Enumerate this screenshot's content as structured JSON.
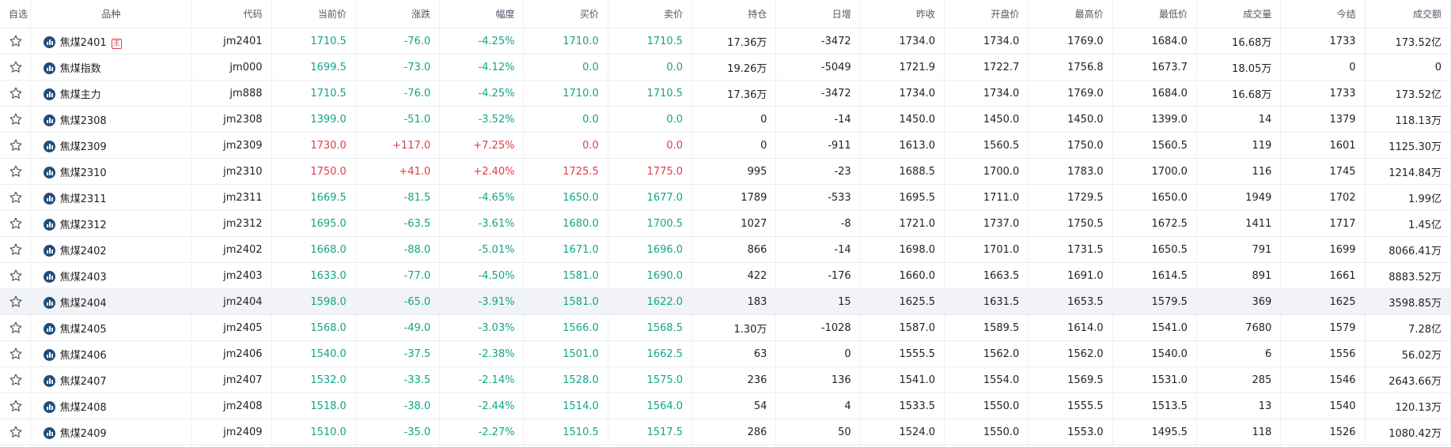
{
  "columns": [
    "自选",
    "品种",
    "代码",
    "当前价",
    "涨跌",
    "幅度",
    "买价",
    "卖价",
    "持仓",
    "日增",
    "昨收",
    "开盘价",
    "最高价",
    "最低价",
    "成交量",
    "今结",
    "成交额"
  ],
  "colors": {
    "up": "#e13b48",
    "down": "#12a587",
    "icon": "#1f4e7c"
  },
  "rows": [
    {
      "dir": "down",
      "name": "焦煤2401",
      "badge": "主",
      "code": "jm2401",
      "price": "1710.5",
      "chg": "-76.0",
      "pct": "-4.25%",
      "bid": "1710.0",
      "ask": "1710.5",
      "oi": "17.36万",
      "daily": "-3472",
      "prev": "1734.0",
      "open": "1734.0",
      "high": "1769.0",
      "low": "1684.0",
      "vol": "16.68万",
      "settle": "1733",
      "amount": "173.52亿"
    },
    {
      "dir": "down",
      "name": "焦煤指数",
      "badge": "",
      "code": "jm000",
      "price": "1699.5",
      "chg": "-73.0",
      "pct": "-4.12%",
      "bid": "0.0",
      "ask": "0.0",
      "oi": "19.26万",
      "daily": "-5049",
      "prev": "1721.9",
      "open": "1722.7",
      "high": "1756.8",
      "low": "1673.7",
      "vol": "18.05万",
      "settle": "0",
      "amount": "0"
    },
    {
      "dir": "down",
      "name": "焦煤主力",
      "badge": "",
      "code": "jm888",
      "price": "1710.5",
      "chg": "-76.0",
      "pct": "-4.25%",
      "bid": "1710.0",
      "ask": "1710.5",
      "oi": "17.36万",
      "daily": "-3472",
      "prev": "1734.0",
      "open": "1734.0",
      "high": "1769.0",
      "low": "1684.0",
      "vol": "16.68万",
      "settle": "1733",
      "amount": "173.52亿"
    },
    {
      "dir": "down",
      "name": "焦煤2308",
      "badge": "",
      "code": "jm2308",
      "price": "1399.0",
      "chg": "-51.0",
      "pct": "-3.52%",
      "bid": "0.0",
      "ask": "0.0",
      "oi": "0",
      "daily": "-14",
      "prev": "1450.0",
      "open": "1450.0",
      "high": "1450.0",
      "low": "1399.0",
      "vol": "14",
      "settle": "1379",
      "amount": "118.13万"
    },
    {
      "dir": "up",
      "name": "焦煤2309",
      "badge": "",
      "code": "jm2309",
      "price": "1730.0",
      "chg": "+117.0",
      "pct": "+7.25%",
      "bid": "0.0",
      "ask": "0.0",
      "oi": "0",
      "daily": "-911",
      "prev": "1613.0",
      "open": "1560.5",
      "high": "1750.0",
      "low": "1560.5",
      "vol": "119",
      "settle": "1601",
      "amount": "1125.30万"
    },
    {
      "dir": "up",
      "name": "焦煤2310",
      "badge": "",
      "code": "jm2310",
      "price": "1750.0",
      "chg": "+41.0",
      "pct": "+2.40%",
      "bid": "1725.5",
      "ask": "1775.0",
      "oi": "995",
      "daily": "-23",
      "prev": "1688.5",
      "open": "1700.0",
      "high": "1783.0",
      "low": "1700.0",
      "vol": "116",
      "settle": "1745",
      "amount": "1214.84万"
    },
    {
      "dir": "down",
      "name": "焦煤2311",
      "badge": "",
      "code": "jm2311",
      "price": "1669.5",
      "chg": "-81.5",
      "pct": "-4.65%",
      "bid": "1650.0",
      "ask": "1677.0",
      "oi": "1789",
      "daily": "-533",
      "prev": "1695.5",
      "open": "1711.0",
      "high": "1729.5",
      "low": "1650.0",
      "vol": "1949",
      "settle": "1702",
      "amount": "1.99亿"
    },
    {
      "dir": "down",
      "name": "焦煤2312",
      "badge": "",
      "code": "jm2312",
      "price": "1695.0",
      "chg": "-63.5",
      "pct": "-3.61%",
      "bid": "1680.0",
      "ask": "1700.5",
      "oi": "1027",
      "daily": "-8",
      "prev": "1721.0",
      "open": "1737.0",
      "high": "1750.5",
      "low": "1672.5",
      "vol": "1411",
      "settle": "1717",
      "amount": "1.45亿"
    },
    {
      "dir": "down",
      "name": "焦煤2402",
      "badge": "",
      "code": "jm2402",
      "price": "1668.0",
      "chg": "-88.0",
      "pct": "-5.01%",
      "bid": "1671.0",
      "ask": "1696.0",
      "oi": "866",
      "daily": "-14",
      "prev": "1698.0",
      "open": "1701.0",
      "high": "1731.5",
      "low": "1650.5",
      "vol": "791",
      "settle": "1699",
      "amount": "8066.41万"
    },
    {
      "dir": "down",
      "name": "焦煤2403",
      "badge": "",
      "code": "jm2403",
      "price": "1633.0",
      "chg": "-77.0",
      "pct": "-4.50%",
      "bid": "1581.0",
      "ask": "1690.0",
      "oi": "422",
      "daily": "-176",
      "prev": "1660.0",
      "open": "1663.5",
      "high": "1691.0",
      "low": "1614.5",
      "vol": "891",
      "settle": "1661",
      "amount": "8883.52万"
    },
    {
      "dir": "down",
      "name": "焦煤2404",
      "badge": "",
      "code": "jm2404",
      "price": "1598.0",
      "chg": "-65.0",
      "pct": "-3.91%",
      "bid": "1581.0",
      "ask": "1622.0",
      "oi": "183",
      "daily": "15",
      "prev": "1625.5",
      "open": "1631.5",
      "high": "1653.5",
      "low": "1579.5",
      "vol": "369",
      "settle": "1625",
      "amount": "3598.85万"
    },
    {
      "dir": "down",
      "name": "焦煤2405",
      "badge": "",
      "code": "jm2405",
      "price": "1568.0",
      "chg": "-49.0",
      "pct": "-3.03%",
      "bid": "1566.0",
      "ask": "1568.5",
      "oi": "1.30万",
      "daily": "-1028",
      "prev": "1587.0",
      "open": "1589.5",
      "high": "1614.0",
      "low": "1541.0",
      "vol": "7680",
      "settle": "1579",
      "amount": "7.28亿"
    },
    {
      "dir": "down",
      "name": "焦煤2406",
      "badge": "",
      "code": "jm2406",
      "price": "1540.0",
      "chg": "-37.5",
      "pct": "-2.38%",
      "bid": "1501.0",
      "ask": "1662.5",
      "oi": "63",
      "daily": "0",
      "prev": "1555.5",
      "open": "1562.0",
      "high": "1562.0",
      "low": "1540.0",
      "vol": "6",
      "settle": "1556",
      "amount": "56.02万"
    },
    {
      "dir": "down",
      "name": "焦煤2407",
      "badge": "",
      "code": "jm2407",
      "price": "1532.0",
      "chg": "-33.5",
      "pct": "-2.14%",
      "bid": "1528.0",
      "ask": "1575.0",
      "oi": "236",
      "daily": "136",
      "prev": "1541.0",
      "open": "1554.0",
      "high": "1569.5",
      "low": "1531.0",
      "vol": "285",
      "settle": "1546",
      "amount": "2643.66万"
    },
    {
      "dir": "down",
      "name": "焦煤2408",
      "badge": "",
      "code": "jm2408",
      "price": "1518.0",
      "chg": "-38.0",
      "pct": "-2.44%",
      "bid": "1514.0",
      "ask": "1564.0",
      "oi": "54",
      "daily": "4",
      "prev": "1533.5",
      "open": "1550.0",
      "high": "1555.5",
      "low": "1513.5",
      "vol": "13",
      "settle": "1540",
      "amount": "120.13万"
    },
    {
      "dir": "down",
      "name": "焦煤2409",
      "badge": "",
      "code": "jm2409",
      "price": "1510.0",
      "chg": "-35.0",
      "pct": "-2.27%",
      "bid": "1510.5",
      "ask": "1517.5",
      "oi": "286",
      "daily": "50",
      "prev": "1524.0",
      "open": "1550.0",
      "high": "1553.0",
      "low": "1495.5",
      "vol": "118",
      "settle": "1526",
      "amount": "1080.42万"
    }
  ]
}
